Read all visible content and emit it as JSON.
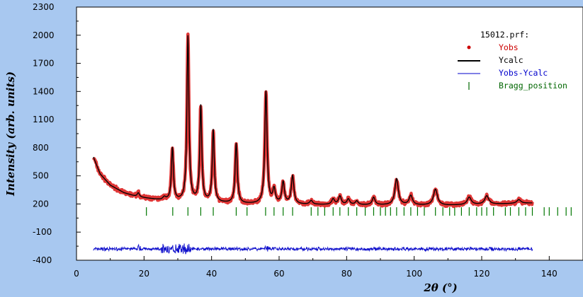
{
  "chart_data": {
    "type": "line",
    "title": "",
    "xlabel": "2θ (°)",
    "ylabel": "Intensity (arb. units)",
    "xlim": [
      0,
      150
    ],
    "ylim": [
      -400,
      2300
    ],
    "x_ticks": [
      0,
      20,
      40,
      60,
      80,
      100,
      120,
      140
    ],
    "y_ticks": [
      -400,
      -100,
      200,
      500,
      800,
      1100,
      1400,
      1700,
      2000,
      2300
    ],
    "legend": {
      "placement": "top-right",
      "file": "15012.prf:",
      "entries": [
        {
          "label": "Yobs",
          "color": "#cc0000"
        },
        {
          "label": "Ycalc",
          "color": "#000000"
        },
        {
          "label": "Yobs-Ycalc",
          "color": "#0000cc"
        },
        {
          "label": "Bragg_position",
          "color": "#006600"
        }
      ]
    },
    "series_colors": {
      "yobs": "#dd2020",
      "ycalc": "#000000",
      "diff": "#1010cc",
      "bragg": "#007700"
    },
    "calc_profile": {
      "x_range": [
        5,
        135
      ],
      "background": [
        [
          5,
          700
        ],
        [
          7,
          520
        ],
        [
          10,
          400
        ],
        [
          14,
          320
        ],
        [
          18,
          275
        ],
        [
          25,
          240
        ],
        [
          35,
          220
        ],
        [
          50,
          200
        ],
        [
          80,
          190
        ],
        [
          110,
          185
        ],
        [
          135,
          210
        ]
      ],
      "peaks": [
        {
          "x": 18.3,
          "h": 45,
          "w": 0.4
        },
        {
          "x": 26.0,
          "h": 30,
          "w": 0.5
        },
        {
          "x": 28.4,
          "h": 560,
          "w": 0.35
        },
        {
          "x": 33.0,
          "h": 1760,
          "w": 0.35
        },
        {
          "x": 36.8,
          "h": 1020,
          "w": 0.35
        },
        {
          "x": 40.5,
          "h": 770,
          "w": 0.35
        },
        {
          "x": 47.3,
          "h": 640,
          "w": 0.38
        },
        {
          "x": 56.1,
          "h": 1200,
          "w": 0.4
        },
        {
          "x": 58.5,
          "h": 150,
          "w": 0.45
        },
        {
          "x": 61.2,
          "h": 230,
          "w": 0.45
        },
        {
          "x": 64.0,
          "h": 300,
          "w": 0.45
        },
        {
          "x": 69.5,
          "h": 40,
          "w": 0.5
        },
        {
          "x": 76.0,
          "h": 60,
          "w": 0.5
        },
        {
          "x": 78.0,
          "h": 90,
          "w": 0.5
        },
        {
          "x": 80.5,
          "h": 60,
          "w": 0.5
        },
        {
          "x": 83.0,
          "h": 40,
          "w": 0.5
        },
        {
          "x": 88.0,
          "h": 80,
          "w": 0.5
        },
        {
          "x": 94.8,
          "h": 280,
          "w": 0.6
        },
        {
          "x": 99.0,
          "h": 100,
          "w": 0.6
        },
        {
          "x": 106.3,
          "h": 170,
          "w": 0.7
        },
        {
          "x": 116.3,
          "h": 80,
          "w": 0.7
        },
        {
          "x": 121.5,
          "h": 90,
          "w": 0.7
        },
        {
          "x": 131.0,
          "h": 40,
          "w": 0.7
        }
      ]
    },
    "bragg_y": 120,
    "bragg_positions": [
      20.7,
      28.5,
      33.0,
      36.8,
      40.5,
      47.3,
      50.5,
      56.0,
      58.5,
      61.2,
      64.0,
      69.5,
      71.5,
      73.5,
      76.0,
      78.0,
      80.5,
      83.0,
      85.5,
      88.0,
      90.0,
      91.5,
      93.0,
      94.8,
      97.0,
      99.0,
      101.0,
      103.0,
      106.3,
      108.5,
      110.5,
      112.0,
      114.0,
      116.3,
      118.5,
      120.0,
      121.5,
      123.5,
      127.0,
      128.5,
      131.0,
      133.0,
      135.0,
      138.5,
      140.0,
      142.5,
      145.0,
      146.5
    ],
    "diff_baseline": -280
  }
}
